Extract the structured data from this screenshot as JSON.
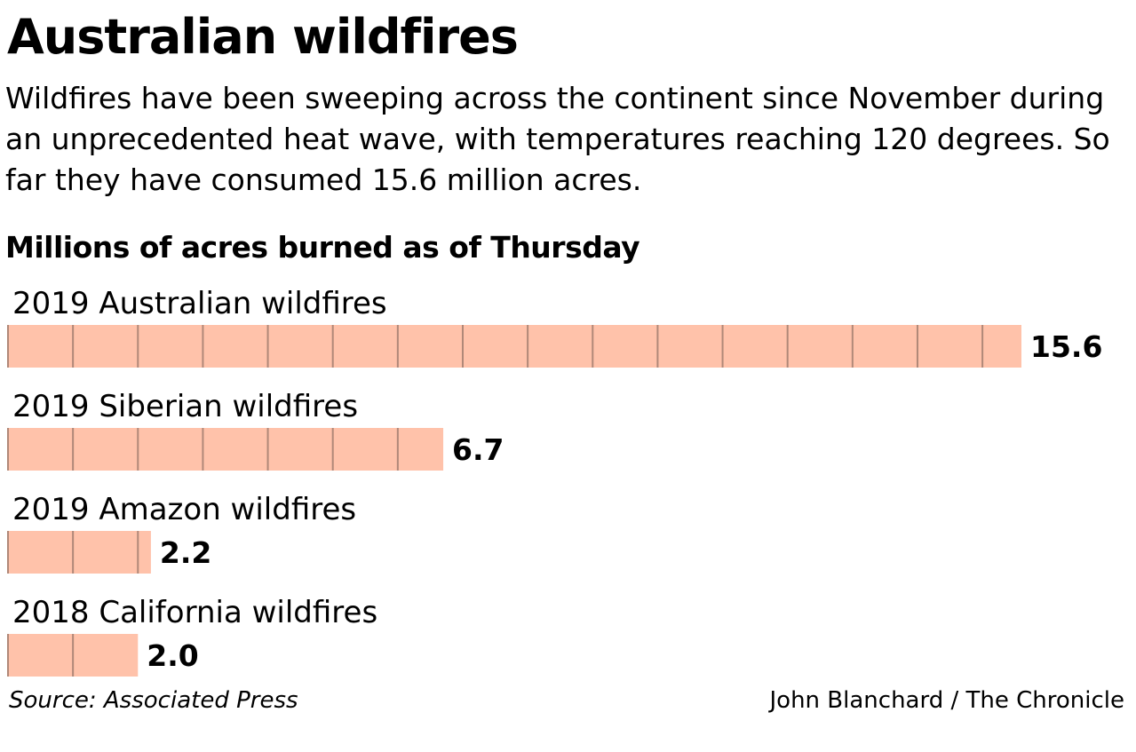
{
  "title": "Australian wildfires",
  "subtitle": "Wildfires have been sweeping across the continent since November during an unprecedented heat wave, with temperatures reaching 120 degrees. So far they have consumed 15.6 million acres.",
  "footer": {
    "source": "Source: Associated Press",
    "credit": "John Blanchard / The Chronicle"
  },
  "chart_data": {
    "type": "bar",
    "orientation": "horizontal",
    "title": "Millions of acres burned as of Thursday",
    "categories": [
      "2019 Australian wildfires",
      "2019 Siberian wildfires",
      "2019 Amazon wildfires",
      "2018 California wildfires"
    ],
    "values": [
      15.6,
      6.7,
      2.2,
      2.0
    ],
    "value_labels": [
      "15.6",
      "6.7",
      "2.2",
      "2.0"
    ],
    "tick_interval": 1,
    "xlim": [
      0,
      15.6
    ],
    "grid": false,
    "legend": "none",
    "colors": {
      "bar": "#FFC2AA",
      "divider": "#B08878"
    }
  }
}
